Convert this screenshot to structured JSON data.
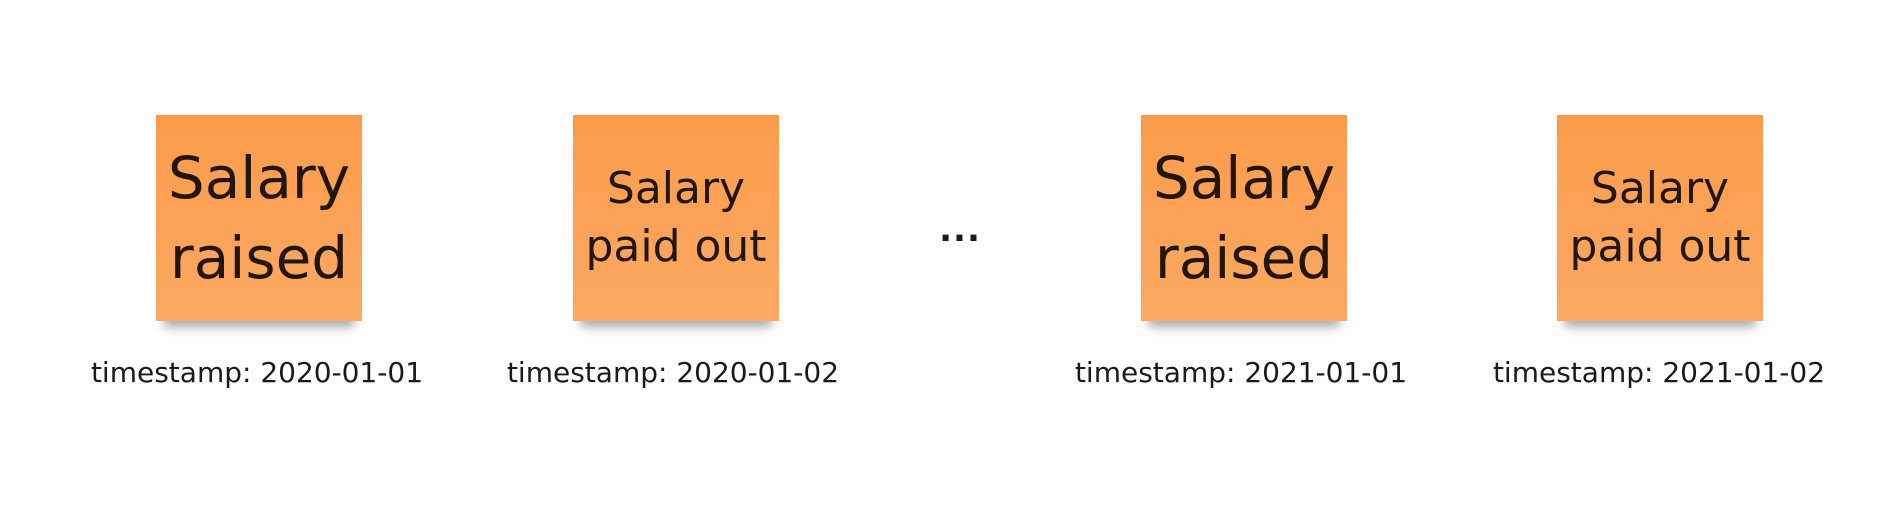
{
  "events": [
    {
      "text": "Salary\nraised",
      "timestamp": "timestamp: 2020-01-01"
    },
    {
      "text": "Salary\npaid out",
      "timestamp": "timestamp: 2020-01-02"
    },
    {
      "text": "Salary\nraised",
      "timestamp": "timestamp: 2021-01-01"
    },
    {
      "text": "Salary\npaid out",
      "timestamp": "timestamp: 2021-01-02"
    }
  ],
  "ellipsis": "...",
  "colors": {
    "sticky_fill": "#fca35a",
    "text": "#1a1a1a"
  }
}
